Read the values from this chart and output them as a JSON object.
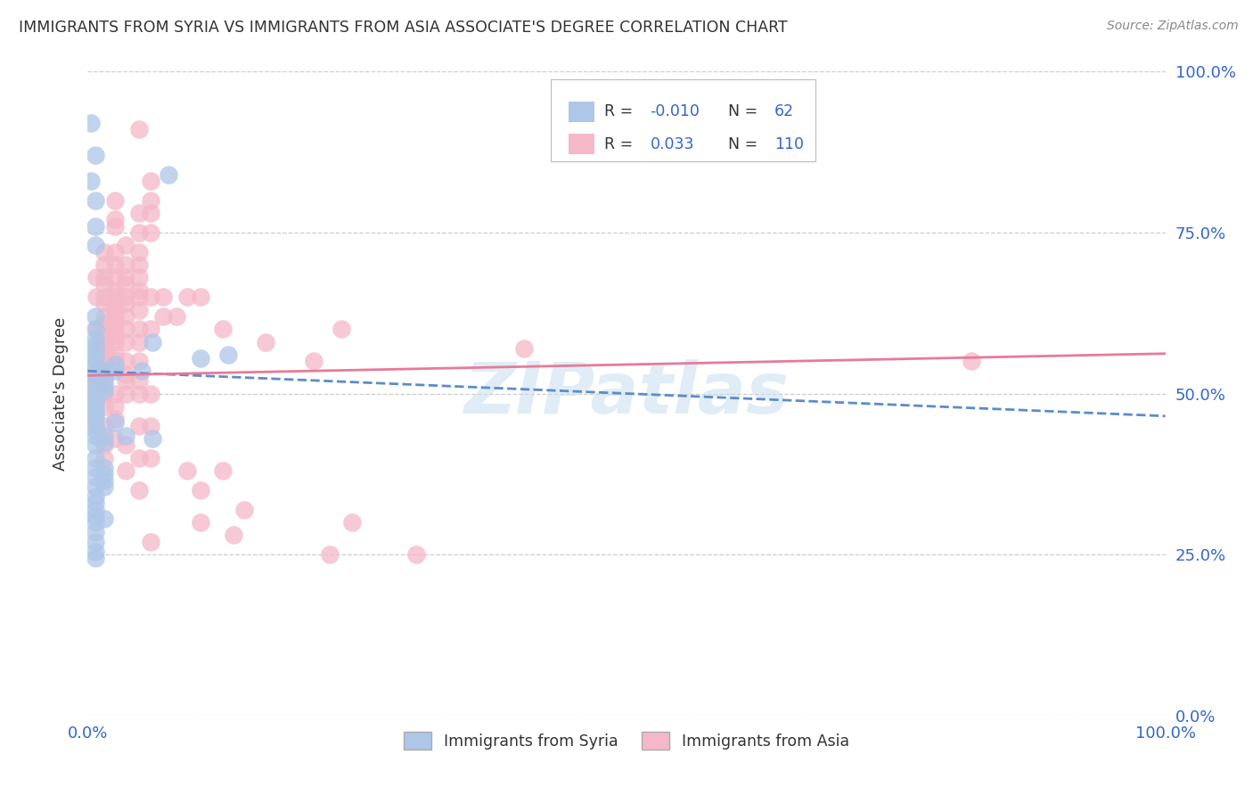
{
  "title": "IMMIGRANTS FROM SYRIA VS IMMIGRANTS FROM ASIA ASSOCIATE'S DEGREE CORRELATION CHART",
  "source": "Source: ZipAtlas.com",
  "ylabel": "Associate's Degree",
  "xlim": [
    0,
    1.0
  ],
  "ylim": [
    0,
    1.0
  ],
  "syria_R": -0.01,
  "syria_N": 62,
  "asia_R": 0.033,
  "asia_N": 110,
  "syria_color": "#aec6e8",
  "asia_color": "#f4b8c8",
  "syria_line_color": "#5b8dc8",
  "asia_line_color": "#e87a99",
  "label_color": "#3366cc",
  "text_dark": "#333333",
  "grid_color": "#cccccc",
  "watermark": "ZIPatlas",
  "syria_line_y0": 0.535,
  "syria_line_y1": 0.465,
  "asia_line_y0": 0.528,
  "asia_line_y1": 0.562,
  "syria_points": [
    [
      0.003,
      0.92
    ],
    [
      0.003,
      0.83
    ],
    [
      0.007,
      0.87
    ],
    [
      0.007,
      0.8
    ],
    [
      0.007,
      0.76
    ],
    [
      0.007,
      0.73
    ],
    [
      0.007,
      0.62
    ],
    [
      0.007,
      0.6
    ],
    [
      0.007,
      0.585
    ],
    [
      0.007,
      0.575
    ],
    [
      0.007,
      0.565
    ],
    [
      0.007,
      0.555
    ],
    [
      0.007,
      0.545
    ],
    [
      0.007,
      0.535
    ],
    [
      0.007,
      0.525
    ],
    [
      0.007,
      0.515
    ],
    [
      0.007,
      0.505
    ],
    [
      0.007,
      0.498
    ],
    [
      0.007,
      0.49
    ],
    [
      0.007,
      0.483
    ],
    [
      0.007,
      0.475
    ],
    [
      0.007,
      0.468
    ],
    [
      0.007,
      0.46
    ],
    [
      0.007,
      0.452
    ],
    [
      0.007,
      0.444
    ],
    [
      0.007,
      0.435
    ],
    [
      0.007,
      0.42
    ],
    [
      0.007,
      0.4
    ],
    [
      0.007,
      0.385
    ],
    [
      0.007,
      0.37
    ],
    [
      0.007,
      0.355
    ],
    [
      0.007,
      0.34
    ],
    [
      0.007,
      0.33
    ],
    [
      0.007,
      0.32
    ],
    [
      0.007,
      0.31
    ],
    [
      0.007,
      0.3
    ],
    [
      0.007,
      0.285
    ],
    [
      0.007,
      0.27
    ],
    [
      0.007,
      0.255
    ],
    [
      0.007,
      0.245
    ],
    [
      0.015,
      0.535
    ],
    [
      0.015,
      0.525
    ],
    [
      0.015,
      0.515
    ],
    [
      0.015,
      0.505
    ],
    [
      0.015,
      0.435
    ],
    [
      0.015,
      0.425
    ],
    [
      0.015,
      0.385
    ],
    [
      0.015,
      0.375
    ],
    [
      0.015,
      0.365
    ],
    [
      0.015,
      0.355
    ],
    [
      0.015,
      0.305
    ],
    [
      0.025,
      0.545
    ],
    [
      0.025,
      0.535
    ],
    [
      0.025,
      0.455
    ],
    [
      0.035,
      0.435
    ],
    [
      0.05,
      0.535
    ],
    [
      0.06,
      0.58
    ],
    [
      0.06,
      0.43
    ],
    [
      0.075,
      0.84
    ],
    [
      0.105,
      0.555
    ],
    [
      0.13,
      0.56
    ]
  ],
  "asia_points": [
    [
      0.008,
      0.68
    ],
    [
      0.008,
      0.65
    ],
    [
      0.008,
      0.6
    ],
    [
      0.008,
      0.57
    ],
    [
      0.008,
      0.55
    ],
    [
      0.008,
      0.53
    ],
    [
      0.008,
      0.52
    ],
    [
      0.008,
      0.51
    ],
    [
      0.015,
      0.72
    ],
    [
      0.015,
      0.7
    ],
    [
      0.015,
      0.68
    ],
    [
      0.015,
      0.67
    ],
    [
      0.015,
      0.65
    ],
    [
      0.015,
      0.64
    ],
    [
      0.015,
      0.62
    ],
    [
      0.015,
      0.61
    ],
    [
      0.015,
      0.6
    ],
    [
      0.015,
      0.59
    ],
    [
      0.015,
      0.58
    ],
    [
      0.015,
      0.57
    ],
    [
      0.015,
      0.56
    ],
    [
      0.015,
      0.55
    ],
    [
      0.015,
      0.54
    ],
    [
      0.015,
      0.53
    ],
    [
      0.015,
      0.52
    ],
    [
      0.015,
      0.5
    ],
    [
      0.015,
      0.48
    ],
    [
      0.015,
      0.45
    ],
    [
      0.015,
      0.42
    ],
    [
      0.015,
      0.4
    ],
    [
      0.025,
      0.8
    ],
    [
      0.025,
      0.77
    ],
    [
      0.025,
      0.76
    ],
    [
      0.025,
      0.72
    ],
    [
      0.025,
      0.7
    ],
    [
      0.025,
      0.68
    ],
    [
      0.025,
      0.66
    ],
    [
      0.025,
      0.65
    ],
    [
      0.025,
      0.64
    ],
    [
      0.025,
      0.63
    ],
    [
      0.025,
      0.62
    ],
    [
      0.025,
      0.61
    ],
    [
      0.025,
      0.6
    ],
    [
      0.025,
      0.59
    ],
    [
      0.025,
      0.58
    ],
    [
      0.025,
      0.56
    ],
    [
      0.025,
      0.55
    ],
    [
      0.025,
      0.5
    ],
    [
      0.025,
      0.48
    ],
    [
      0.025,
      0.46
    ],
    [
      0.025,
      0.43
    ],
    [
      0.035,
      0.73
    ],
    [
      0.035,
      0.7
    ],
    [
      0.035,
      0.68
    ],
    [
      0.035,
      0.67
    ],
    [
      0.035,
      0.65
    ],
    [
      0.035,
      0.64
    ],
    [
      0.035,
      0.62
    ],
    [
      0.035,
      0.6
    ],
    [
      0.035,
      0.58
    ],
    [
      0.035,
      0.55
    ],
    [
      0.035,
      0.53
    ],
    [
      0.035,
      0.52
    ],
    [
      0.035,
      0.5
    ],
    [
      0.035,
      0.42
    ],
    [
      0.035,
      0.38
    ],
    [
      0.048,
      0.91
    ],
    [
      0.048,
      0.78
    ],
    [
      0.048,
      0.75
    ],
    [
      0.048,
      0.72
    ],
    [
      0.048,
      0.7
    ],
    [
      0.048,
      0.68
    ],
    [
      0.048,
      0.66
    ],
    [
      0.048,
      0.65
    ],
    [
      0.048,
      0.63
    ],
    [
      0.048,
      0.6
    ],
    [
      0.048,
      0.58
    ],
    [
      0.048,
      0.55
    ],
    [
      0.048,
      0.52
    ],
    [
      0.048,
      0.5
    ],
    [
      0.048,
      0.45
    ],
    [
      0.048,
      0.4
    ],
    [
      0.048,
      0.35
    ],
    [
      0.058,
      0.83
    ],
    [
      0.058,
      0.8
    ],
    [
      0.058,
      0.78
    ],
    [
      0.058,
      0.75
    ],
    [
      0.058,
      0.65
    ],
    [
      0.058,
      0.6
    ],
    [
      0.058,
      0.5
    ],
    [
      0.058,
      0.45
    ],
    [
      0.058,
      0.4
    ],
    [
      0.058,
      0.27
    ],
    [
      0.07,
      0.65
    ],
    [
      0.07,
      0.62
    ],
    [
      0.082,
      0.62
    ],
    [
      0.092,
      0.65
    ],
    [
      0.092,
      0.38
    ],
    [
      0.105,
      0.65
    ],
    [
      0.105,
      0.35
    ],
    [
      0.105,
      0.3
    ],
    [
      0.125,
      0.6
    ],
    [
      0.125,
      0.38
    ],
    [
      0.135,
      0.28
    ],
    [
      0.145,
      0.32
    ],
    [
      0.165,
      0.58
    ],
    [
      0.21,
      0.55
    ],
    [
      0.225,
      0.25
    ],
    [
      0.235,
      0.6
    ],
    [
      0.245,
      0.3
    ],
    [
      0.305,
      0.25
    ],
    [
      0.405,
      0.57
    ],
    [
      0.82,
      0.55
    ]
  ]
}
